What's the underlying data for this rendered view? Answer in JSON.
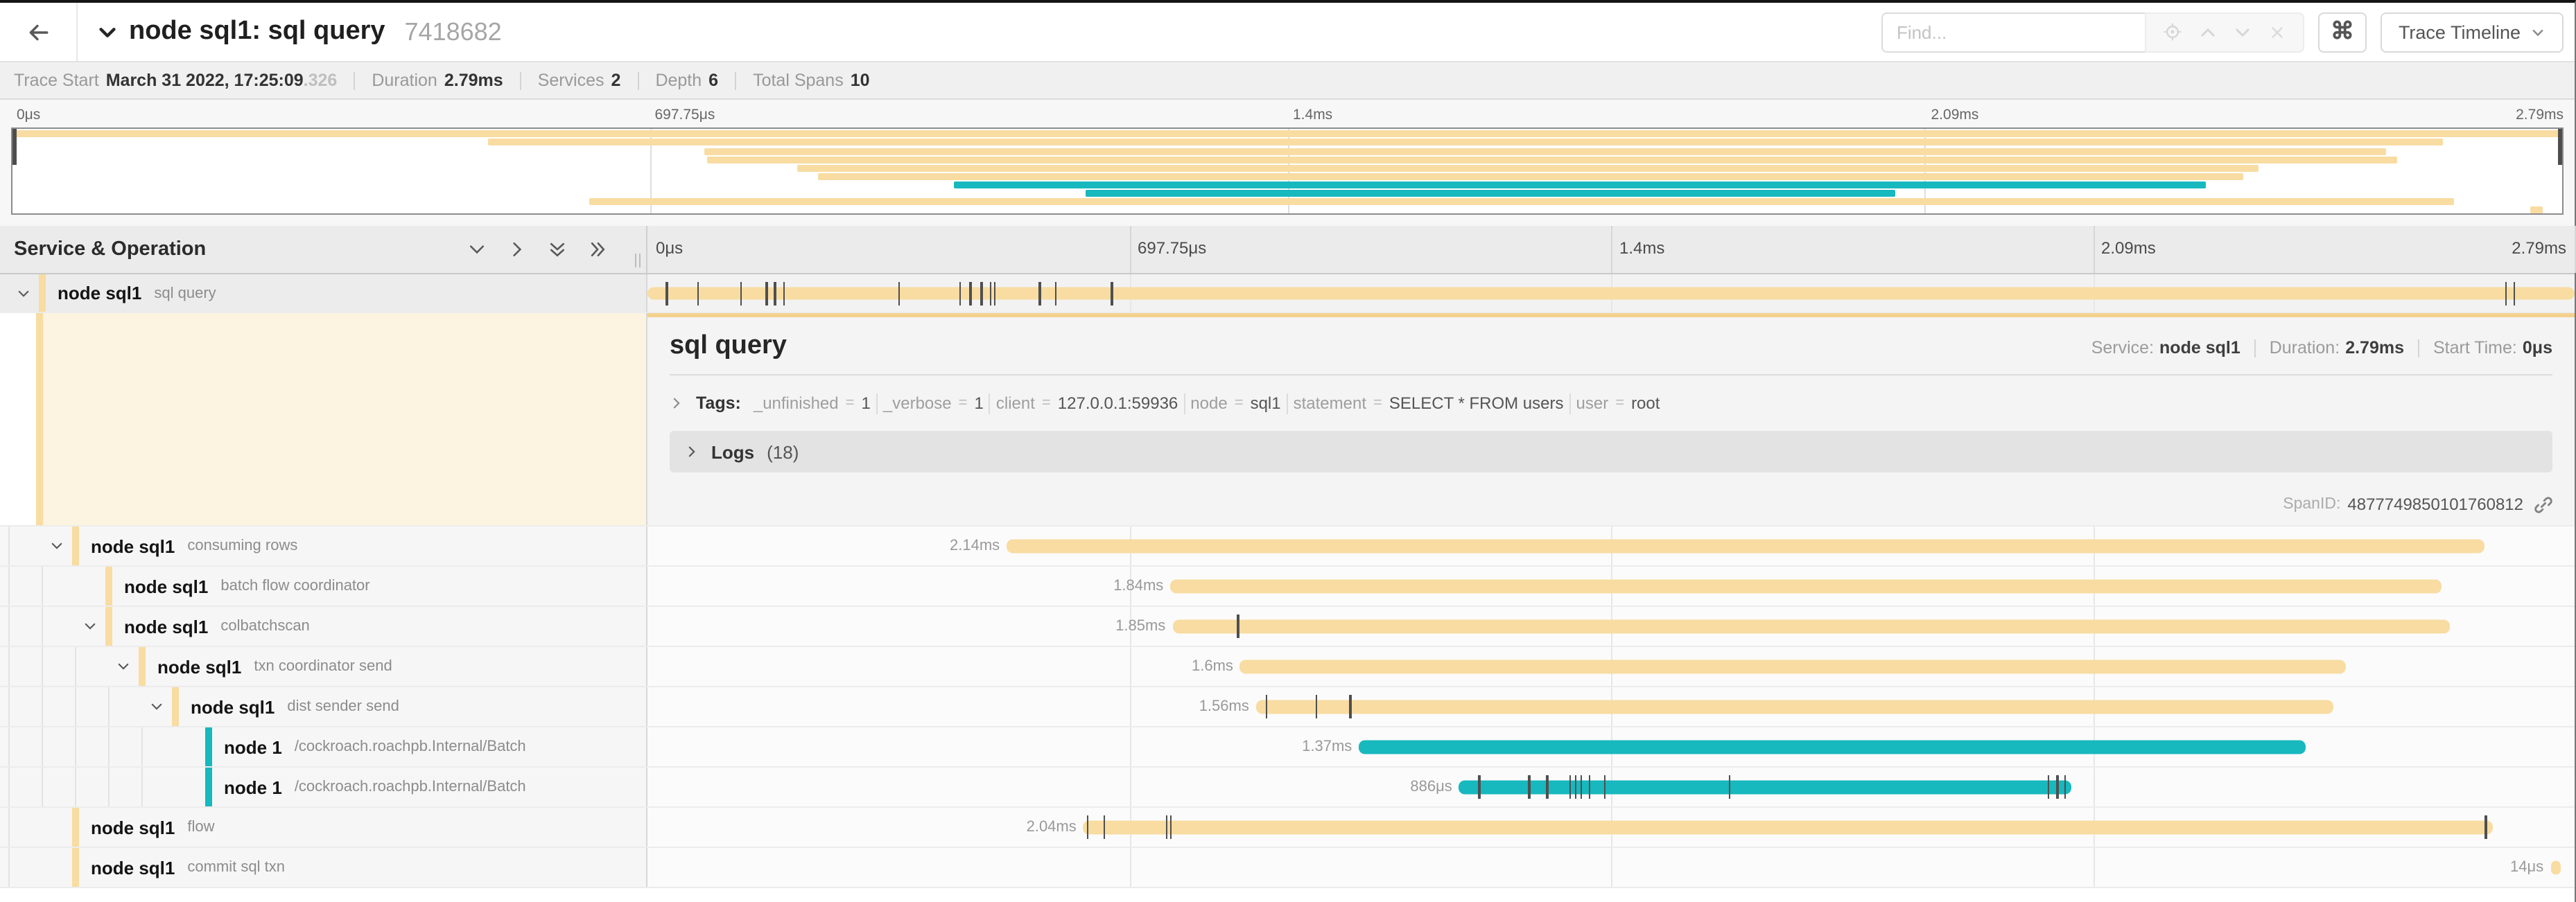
{
  "header": {
    "title": "node sql1: sql query",
    "trace_id": "7418682",
    "find_placeholder": "Find...",
    "cmd_glyph": "⌘",
    "view_select_label": "Trace Timeline"
  },
  "trace_meta": {
    "trace_start_label": "Trace Start",
    "trace_start_value": "March 31 2022, 17:25:09",
    "trace_start_fraction": ".326",
    "duration_label": "Duration",
    "duration_value": "2.79ms",
    "services_label": "Services",
    "services_value": "2",
    "depth_label": "Depth",
    "depth_value": "6",
    "total_spans_label": "Total Spans",
    "total_spans_value": "10"
  },
  "timeline": {
    "header_label": "Service & Operation",
    "axis_ticks": [
      "0μs",
      "697.75μs",
      "1.4ms",
      "2.09ms",
      "2.79ms"
    ],
    "axis_positions_pct": [
      0,
      25,
      50,
      75,
      100
    ],
    "total_ms": 2.79
  },
  "detail": {
    "title": "sql query",
    "service_label": "Service:",
    "service_value": "node sql1",
    "duration_label": "Duration:",
    "duration_value": "2.79ms",
    "start_label": "Start Time:",
    "start_value": "0μs",
    "tags_label": "Tags:",
    "tags": [
      {
        "key": "_unfinished",
        "value": "1"
      },
      {
        "key": "_verbose",
        "value": "1"
      },
      {
        "key": "client",
        "value": "127.0.0.1:59936"
      },
      {
        "key": "node",
        "value": "sql1"
      },
      {
        "key": "statement",
        "value": "SELECT * FROM users"
      },
      {
        "key": "user",
        "value": "root"
      }
    ],
    "logs_label": "Logs",
    "logs_count": "(18)",
    "span_id_label": "SpanID:",
    "span_id": "4877749850101760812"
  },
  "colors": {
    "tan": "#F8DCA1",
    "teal": "#17B8BE",
    "accent_tan": "#F3D28F",
    "tick": "#4f4f4f"
  },
  "chart_data": {
    "type": "gantt",
    "title": "Jaeger trace timeline: node sql1: sql query",
    "x_unit": "ms",
    "x_range": [
      0,
      2.79
    ],
    "axis_ticks_ms": [
      0,
      0.69775,
      1.4,
      2.09,
      2.79
    ],
    "spans": [
      {
        "service": "node sql1",
        "operation": "sql query",
        "level": 0,
        "color": "tan",
        "start_ms": 0,
        "duration_ms": 2.79,
        "duration_label": "",
        "has_children": true,
        "selected": true,
        "log_ticks_ms": [
          0.027,
          0.072,
          0.134,
          0.171,
          0.183,
          0.196,
          0.363,
          0.451,
          0.466,
          0.482,
          0.495,
          0.502,
          0.567,
          0.59,
          0.671,
          2.689,
          2.701
        ]
      },
      {
        "service": "node sql1",
        "operation": "consuming rows",
        "level": 1,
        "color": "tan",
        "start_ms": 0.52,
        "duration_ms": 2.14,
        "duration_label": "2.14ms",
        "has_children": true,
        "selected": false,
        "log_ticks_ms": []
      },
      {
        "service": "node sql1",
        "operation": "batch flow coordinator",
        "level": 2,
        "color": "tan",
        "start_ms": 0.757,
        "duration_ms": 1.84,
        "duration_label": "1.84ms",
        "has_children": false,
        "selected": false,
        "log_ticks_ms": []
      },
      {
        "service": "node sql1",
        "operation": "colbatchscan",
        "level": 2,
        "color": "tan",
        "start_ms": 0.76,
        "duration_ms": 1.85,
        "duration_label": "1.85ms",
        "has_children": true,
        "selected": false,
        "log_ticks_ms": [
          0.854
        ]
      },
      {
        "service": "node sql1",
        "operation": "txn coordinator send",
        "level": 3,
        "color": "tan",
        "start_ms": 0.858,
        "duration_ms": 1.6,
        "duration_label": "1.6ms",
        "has_children": true,
        "selected": false,
        "log_ticks_ms": []
      },
      {
        "service": "node sql1",
        "operation": "dist sender send",
        "level": 4,
        "color": "tan",
        "start_ms": 0.881,
        "duration_ms": 1.56,
        "duration_label": "1.56ms",
        "has_children": true,
        "selected": false,
        "log_ticks_ms": [
          0.895,
          0.967,
          1.016
        ]
      },
      {
        "service": "node 1",
        "operation": "/cockroach.roachpb.Internal/Batch",
        "level": 5,
        "color": "teal",
        "start_ms": 1.03,
        "duration_ms": 1.37,
        "duration_label": "1.37ms",
        "has_children": false,
        "selected": false,
        "log_ticks_ms": []
      },
      {
        "service": "node 1",
        "operation": "/cockroach.roachpb.Internal/Batch",
        "level": 5,
        "color": "teal",
        "start_ms": 1.175,
        "duration_ms": 0.886,
        "duration_label": "886μs",
        "has_children": false,
        "selected": false,
        "log_ticks_ms": [
          1.203,
          1.275,
          1.301,
          1.334,
          1.342,
          1.35,
          1.363,
          1.384,
          1.565,
          2.027,
          2.04,
          2.051
        ]
      },
      {
        "service": "node sql1",
        "operation": "flow",
        "level": 1,
        "color": "tan",
        "start_ms": 0.631,
        "duration_ms": 2.04,
        "duration_label": "2.04ms",
        "has_children": false,
        "selected": false,
        "log_ticks_ms": [
          0.636,
          0.66,
          0.75,
          0.756,
          2.66
        ]
      },
      {
        "service": "node sql1",
        "operation": "commit sql txn",
        "level": 1,
        "color": "tan",
        "start_ms": 2.755,
        "duration_ms": 0.014,
        "duration_label": "14μs",
        "has_children": false,
        "selected": false,
        "log_ticks_ms": []
      }
    ]
  }
}
